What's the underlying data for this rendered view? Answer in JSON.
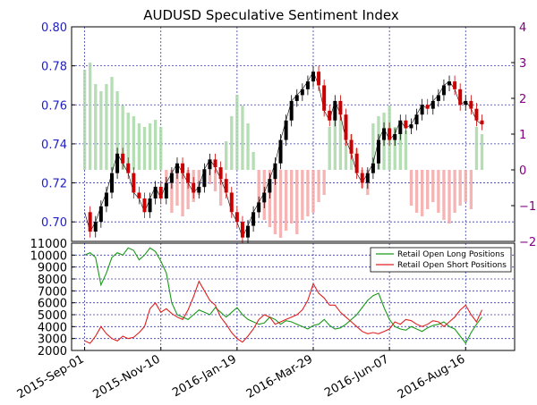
{
  "chart_data": [
    {
      "type": "candlestick+bar",
      "title": "AUDUSD Speculative Sentiment Index",
      "left_axis": {
        "ylim": [
          0.69,
          0.8
        ],
        "ticks": [
          "0.70",
          "0.72",
          "0.74",
          "0.76",
          "0.78",
          "0.80"
        ],
        "tick_values": [
          0.7,
          0.72,
          0.74,
          0.76,
          0.78,
          0.8
        ],
        "color": "#1f1fbf"
      },
      "right_axis": {
        "ylim": [
          -2,
          4
        ],
        "ticks": [
          "−2",
          "−1",
          "0",
          "1",
          "2",
          "3",
          "4"
        ],
        "tick_values": [
          -2,
          -1,
          0,
          1,
          2,
          3,
          4
        ],
        "color": "#800080"
      },
      "x_ticks": [
        "2015-Sep-01",
        "2015-Nov-10",
        "2016-Jan-19",
        "2016-Mar-29",
        "2016-Jun-07",
        "2016-Aug-16"
      ],
      "x_tick_days": [
        0,
        70,
        140,
        210,
        280,
        350
      ],
      "x_range_days": [
        -12,
        395
      ],
      "grid": true,
      "price_close": {
        "days": [
          0,
          5,
          10,
          15,
          20,
          25,
          30,
          35,
          40,
          45,
          50,
          55,
          60,
          65,
          70,
          75,
          80,
          85,
          90,
          95,
          100,
          105,
          110,
          115,
          120,
          125,
          130,
          135,
          140,
          145,
          150,
          155,
          160,
          165,
          170,
          175,
          180,
          185,
          190,
          195,
          200,
          205,
          210,
          215,
          220,
          225,
          230,
          235,
          240,
          245,
          250,
          255,
          260,
          265,
          270,
          275,
          280,
          285,
          290,
          295,
          300,
          305,
          310,
          315,
          320,
          325,
          330,
          335,
          340,
          345,
          350,
          355,
          360,
          365
        ],
        "values": [
          0.705,
          0.695,
          0.7,
          0.708,
          0.715,
          0.725,
          0.735,
          0.73,
          0.725,
          0.715,
          0.712,
          0.705,
          0.712,
          0.718,
          0.712,
          0.72,
          0.725,
          0.73,
          0.725,
          0.72,
          0.715,
          0.718,
          0.727,
          0.732,
          0.728,
          0.722,
          0.715,
          0.705,
          0.7,
          0.692,
          0.698,
          0.705,
          0.71,
          0.715,
          0.722,
          0.73,
          0.742,
          0.752,
          0.762,
          0.765,
          0.768,
          0.772,
          0.777,
          0.77,
          0.757,
          0.752,
          0.762,
          0.755,
          0.742,
          0.735,
          0.725,
          0.72,
          0.725,
          0.73,
          0.742,
          0.748,
          0.742,
          0.745,
          0.752,
          0.748,
          0.75,
          0.755,
          0.76,
          0.758,
          0.762,
          0.765,
          0.77,
          0.772,
          0.768,
          0.76,
          0.762,
          0.758,
          0.752,
          0.75
        ]
      },
      "ssi_bars": {
        "days": [
          0,
          5,
          10,
          15,
          20,
          25,
          30,
          35,
          40,
          45,
          50,
          55,
          60,
          65,
          70,
          75,
          80,
          85,
          90,
          95,
          100,
          105,
          110,
          115,
          120,
          125,
          130,
          135,
          140,
          145,
          150,
          155,
          160,
          165,
          170,
          175,
          180,
          185,
          190,
          195,
          200,
          205,
          210,
          215,
          220,
          225,
          230,
          235,
          240,
          245,
          250,
          255,
          260,
          265,
          270,
          275,
          280,
          285,
          290,
          295,
          300,
          305,
          310,
          315,
          320,
          325,
          330,
          335,
          340,
          345,
          350,
          355,
          360,
          365
        ],
        "values": [
          2.8,
          3.0,
          2.4,
          2.2,
          2.4,
          2.6,
          2.2,
          1.8,
          1.6,
          1.5,
          1.3,
          1.2,
          1.3,
          1.4,
          1.2,
          -0.8,
          -1.2,
          -1.0,
          -1.3,
          -1.1,
          -0.9,
          -0.7,
          -0.5,
          -0.4,
          -0.6,
          -1.0,
          0.8,
          1.5,
          2.1,
          1.8,
          1.3,
          0.5,
          -1.2,
          -1.4,
          -1.6,
          -1.8,
          -1.9,
          -1.7,
          -1.5,
          -1.8,
          -1.4,
          -1.3,
          -1.2,
          -0.9,
          -0.7,
          1.2,
          1.7,
          1.8,
          1.5,
          1.0,
          0.6,
          -0.5,
          -0.7,
          1.3,
          1.5,
          1.6,
          1.8,
          1.2,
          1.0,
          1.1,
          -1.0,
          -1.2,
          -1.3,
          -1.1,
          -0.9,
          -1.2,
          -1.4,
          -1.5,
          -1.2,
          -1.0,
          -0.9,
          -1.1,
          1.2,
          1.0
        ],
        "positive_color": "#a8d8a8",
        "negative_color": "#f5a8a8"
      }
    },
    {
      "type": "line",
      "ylim": [
        2000,
        11000
      ],
      "y_ticks": [
        "2000",
        "3000",
        "4000",
        "5000",
        "6000",
        "7000",
        "8000",
        "9000",
        "10000",
        "11000"
      ],
      "y_tick_values": [
        2000,
        3000,
        4000,
        5000,
        6000,
        7000,
        8000,
        9000,
        10000,
        11000
      ],
      "legend_position": "top-right",
      "grid": true,
      "days": [
        0,
        5,
        10,
        15,
        20,
        25,
        30,
        35,
        40,
        45,
        50,
        55,
        60,
        65,
        70,
        75,
        80,
        85,
        90,
        95,
        100,
        105,
        110,
        115,
        120,
        125,
        130,
        135,
        140,
        145,
        150,
        155,
        160,
        165,
        170,
        175,
        180,
        185,
        190,
        195,
        200,
        205,
        210,
        215,
        220,
        225,
        230,
        235,
        240,
        245,
        250,
        255,
        260,
        265,
        270,
        275,
        280,
        285,
        290,
        295,
        300,
        305,
        310,
        315,
        320,
        325,
        330,
        335,
        340,
        345,
        350,
        355,
        360,
        365
      ],
      "series": [
        {
          "name": "Retail Open Long Positions",
          "color": "#1a9a1a",
          "values": [
            10000,
            10200,
            9800,
            7500,
            8500,
            9800,
            10200,
            10000,
            10600,
            10400,
            9600,
            10000,
            10600,
            10300,
            9500,
            8500,
            6000,
            5000,
            4800,
            4600,
            5000,
            5400,
            5200,
            5000,
            5600,
            5200,
            4800,
            5200,
            5600,
            5000,
            4600,
            4400,
            4200,
            4300,
            4800,
            4600,
            4200,
            4500,
            4400,
            4200,
            4000,
            3800,
            4100,
            4200,
            4600,
            4100,
            3800,
            3900,
            4200,
            4600,
            5000,
            5600,
            6200,
            6600,
            6800,
            5600,
            4600,
            4000,
            3800,
            3700,
            4000,
            3800,
            3600,
            3900,
            4100,
            4200,
            4400,
            4000,
            3800,
            3200,
            2600,
            3500,
            4200,
            4800
          ]
        },
        {
          "name": "Retail Open Short Positions",
          "color": "#e02020",
          "values": [
            2800,
            2600,
            3200,
            4000,
            3400,
            3000,
            2800,
            3200,
            3000,
            3100,
            3500,
            4000,
            5500,
            6000,
            5200,
            5500,
            5100,
            4800,
            4600,
            5400,
            6500,
            7800,
            7000,
            6200,
            5800,
            4800,
            4200,
            3500,
            3000,
            2700,
            3200,
            3800,
            4600,
            5000,
            4800,
            4200,
            4400,
            4600,
            4800,
            5000,
            5400,
            6200,
            7600,
            6800,
            6400,
            5800,
            5800,
            5200,
            4800,
            4400,
            4000,
            3600,
            3400,
            3500,
            3400,
            3600,
            3800,
            4400,
            4200,
            4600,
            4500,
            4200,
            4000,
            4200,
            4500,
            4400,
            4000,
            4400,
            4800,
            5400,
            5800,
            5000,
            4400,
            5400
          ]
        }
      ]
    }
  ]
}
